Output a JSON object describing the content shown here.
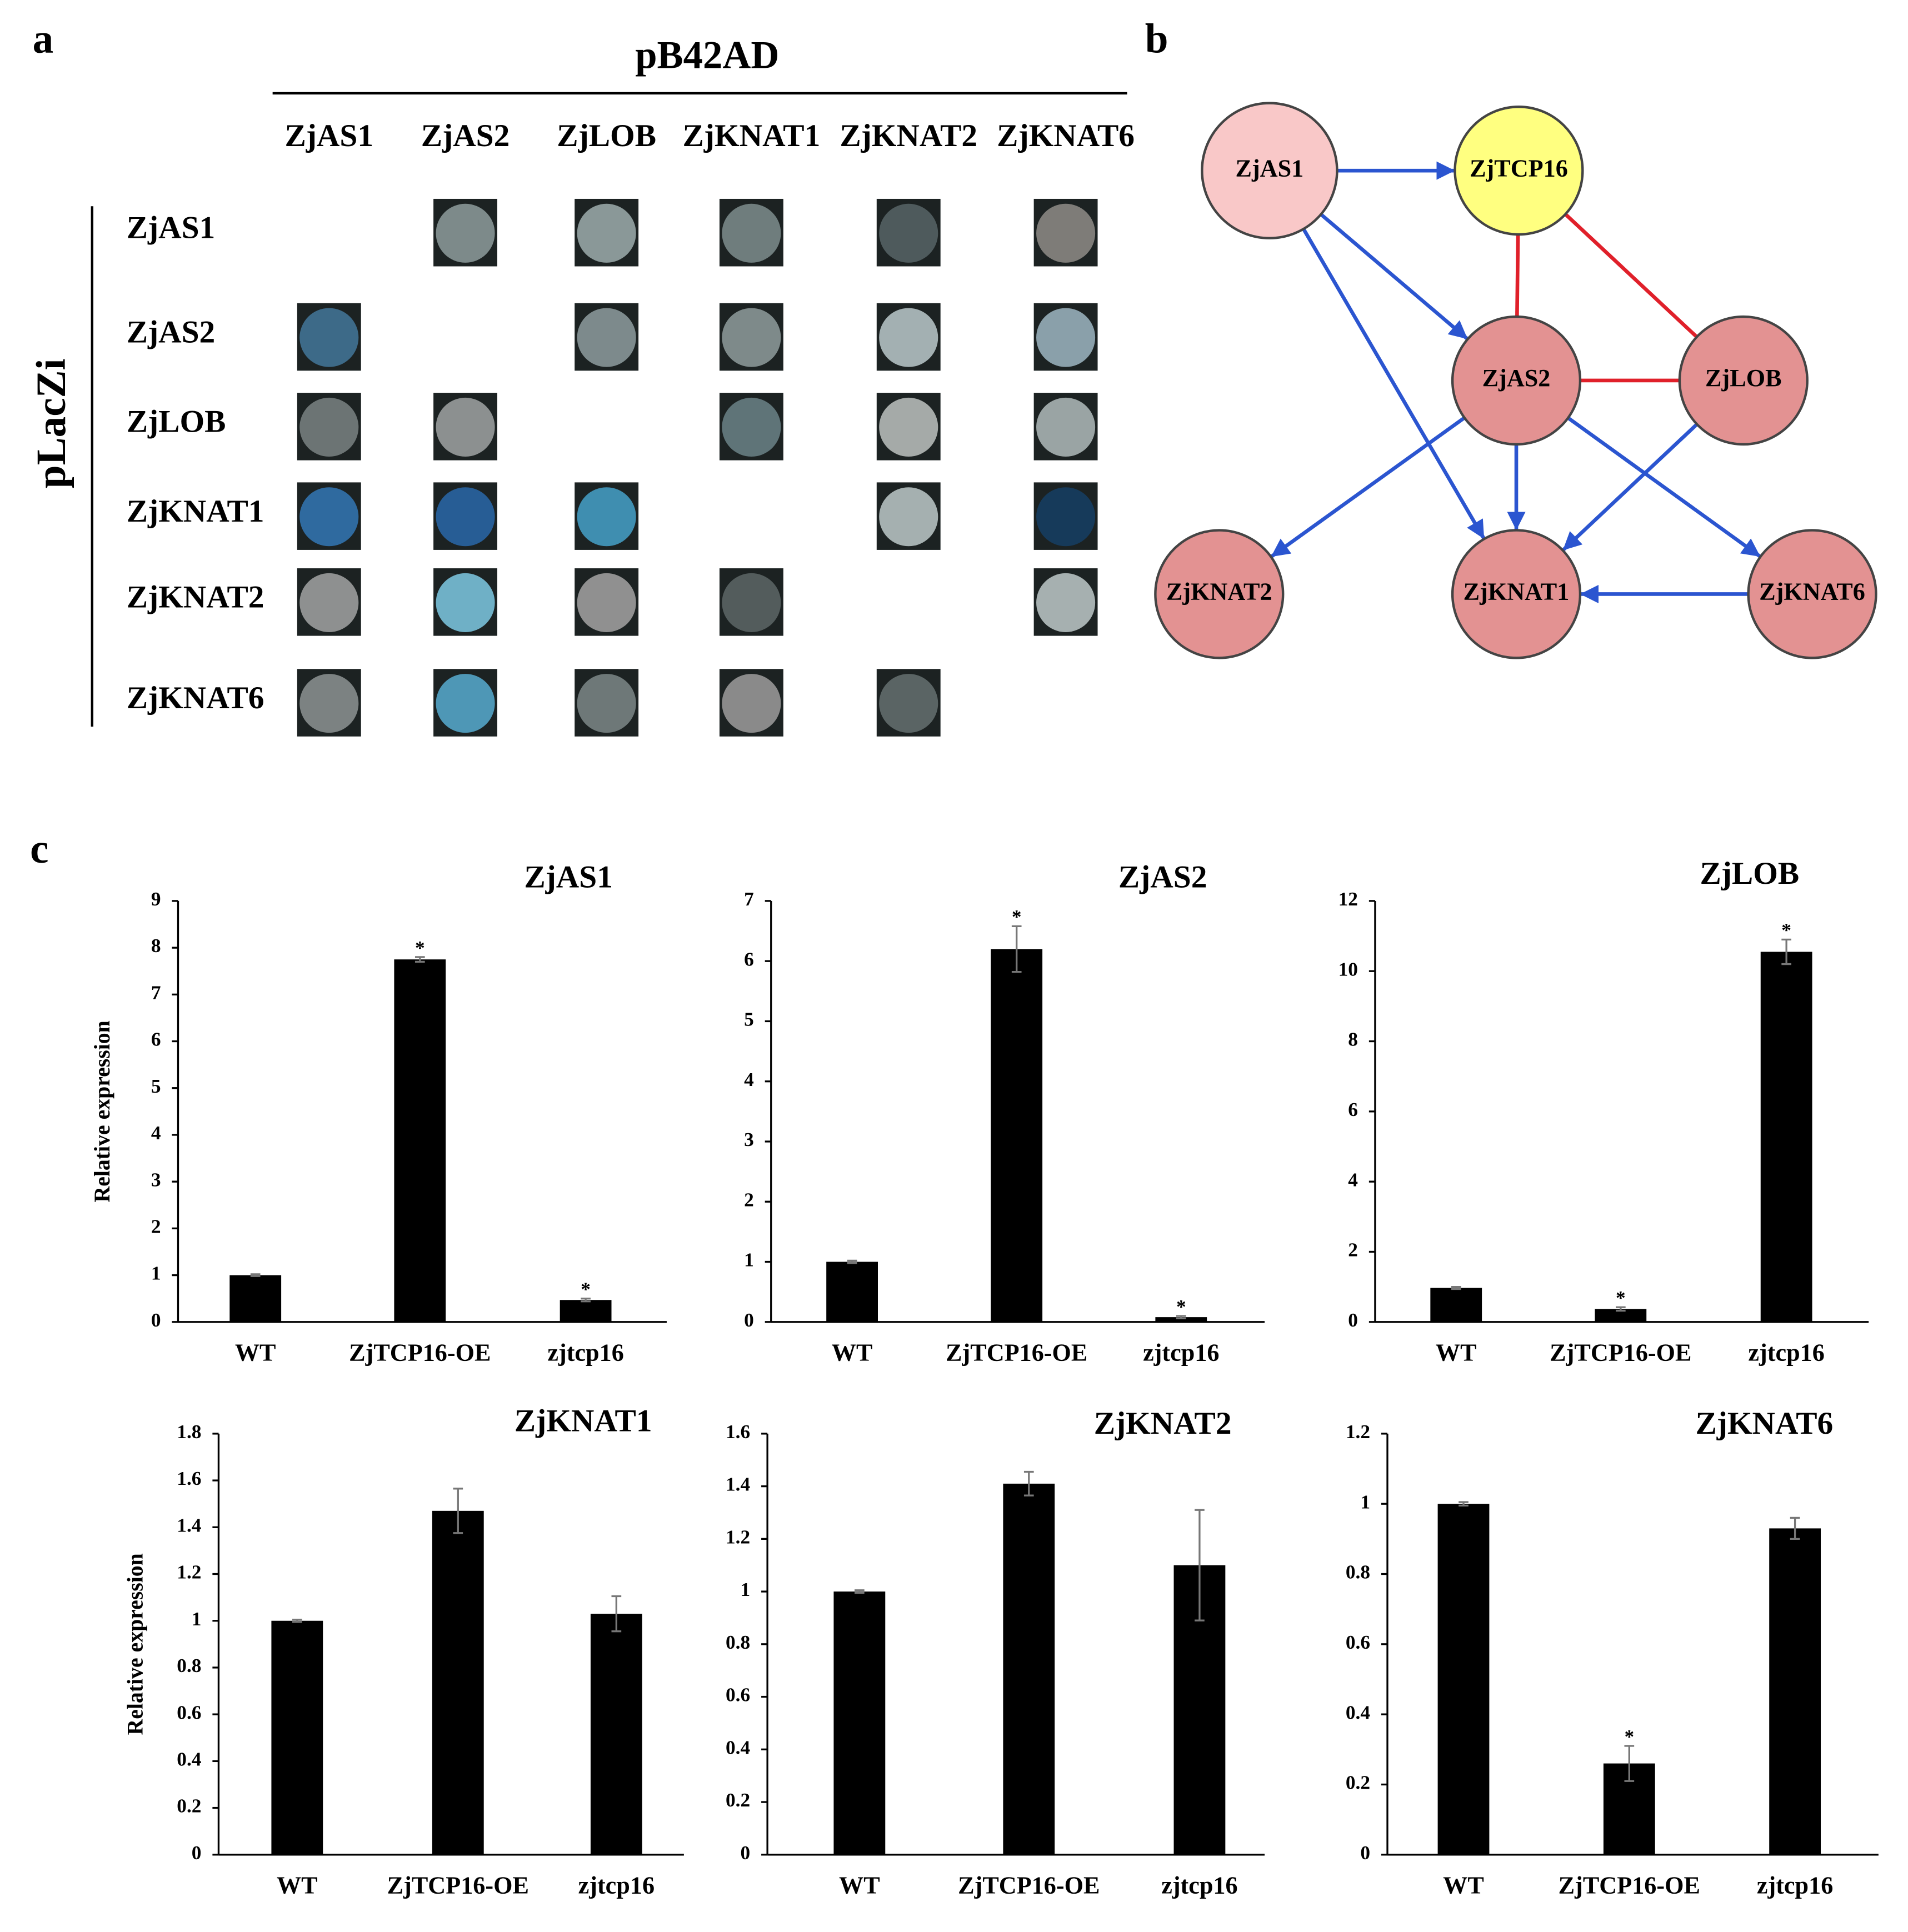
{
  "panel_labels": [
    "a",
    "b",
    "c"
  ],
  "panel_a": {
    "header": "pB42AD",
    "side_label": "pLacZi",
    "columns": [
      "ZjAS1",
      "ZjAS2",
      "ZjLOB",
      "ZjKNAT1",
      "ZjKNAT2",
      "ZjKNAT6"
    ],
    "rows": [
      "ZjAS1",
      "ZjAS2",
      "ZjLOB",
      "ZjKNAT1",
      "ZjKNAT2",
      "ZjKNAT6"
    ],
    "spot_colors": [
      [
        null,
        "#7d8a8a",
        "#8a9898",
        "#6f7d7d",
        "#4e5a5c",
        "#7e7c78"
      ],
      [
        "#3d6a88",
        null,
        "#7d8a8c",
        "#7e8a8a",
        "#a3b0b2",
        "#8aa0aa"
      ],
      [
        "#6c7474",
        "#8c9090",
        null,
        "#5f7478",
        "#a5aaa8",
        "#9aa4a4"
      ],
      [
        "#2f6a9f",
        "#275d95",
        "#3f8eb0",
        null,
        "#a5b0b0",
        "#163a5a"
      ],
      [
        "#8e9090",
        "#6fb0c6",
        "#909090",
        "#535c5c",
        null,
        "#a6b0b0"
      ],
      [
        "#7c8282",
        "#4e97b6",
        "#6e7878",
        "#8a8a8a",
        "#5a6464",
        null
      ]
    ]
  },
  "panel_b": {
    "nodes": [
      {
        "label": "ZjAS1",
        "color": "#f9c8c8"
      },
      {
        "label": "ZjTCP16",
        "color": "#ffff80"
      },
      {
        "label": "ZjAS2",
        "color": "#e39292"
      },
      {
        "label": "ZjLOB",
        "color": "#e39292"
      },
      {
        "label": "ZjKNAT2",
        "color": "#e39292"
      },
      {
        "label": "ZjKNAT1",
        "color": "#e39292"
      },
      {
        "label": "ZjKNAT6",
        "color": "#e39292"
      }
    ],
    "edges": [
      {
        "from": 0,
        "to": 1,
        "color": "#2b55d0",
        "arrow": true
      },
      {
        "from": 0,
        "to": 2,
        "color": "#2b55d0",
        "arrow": true
      },
      {
        "from": 0,
        "to": 5,
        "color": "#2b55d0",
        "arrow": true
      },
      {
        "from": 1,
        "to": 2,
        "color": "#e0202a",
        "arrow": false
      },
      {
        "from": 1,
        "to": 3,
        "color": "#e0202a",
        "arrow": false
      },
      {
        "from": 2,
        "to": 3,
        "color": "#e0202a",
        "arrow": false
      },
      {
        "from": 2,
        "to": 4,
        "color": "#2b55d0",
        "arrow": true
      },
      {
        "from": 2,
        "to": 5,
        "color": "#2b55d0",
        "arrow": true
      },
      {
        "from": 2,
        "to": 6,
        "color": "#2b55d0",
        "arrow": true
      },
      {
        "from": 3,
        "to": 5,
        "color": "#2b55d0",
        "arrow": true
      },
      {
        "from": 6,
        "to": 5,
        "color": "#2b55d0",
        "arrow": true
      }
    ]
  },
  "chart_data": [
    {
      "type": "bar",
      "title": "ZjAS1",
      "y_label": "Relative expression",
      "categories": [
        "WT",
        "ZjTCP16-OE",
        "zjtcp16"
      ],
      "values": [
        1,
        7.75,
        0.47
      ],
      "errors": [
        0.02,
        0.05,
        0.03
      ],
      "significance": [
        null,
        "*",
        "*"
      ],
      "color": "#000000",
      "ylim": [
        0,
        9
      ],
      "yticks": [
        0,
        1,
        2,
        3,
        4,
        5,
        6,
        7,
        8,
        9
      ]
    },
    {
      "type": "bar",
      "title": "ZjAS2",
      "categories": [
        "WT",
        "ZjTCP16-OE",
        "zjtcp16"
      ],
      "values": [
        1,
        6.2,
        0.08
      ],
      "errors": [
        0.02,
        0.38,
        0.02
      ],
      "significance": [
        null,
        "*",
        "*"
      ],
      "color": "#000000",
      "ylim": [
        0,
        7
      ],
      "yticks": [
        0,
        1,
        2,
        3,
        4,
        5,
        6,
        7
      ]
    },
    {
      "type": "bar",
      "title": "ZjLOB",
      "categories": [
        "WT",
        "ZjTCP16-OE",
        "zjtcp16"
      ],
      "values": [
        0.97,
        0.37,
        10.55
      ],
      "errors": [
        0.03,
        0.05,
        0.35
      ],
      "significance": [
        null,
        "*",
        "*"
      ],
      "color": "#000000",
      "ylim": [
        0,
        12
      ],
      "yticks": [
        0,
        2,
        4,
        6,
        8,
        10,
        12
      ]
    },
    {
      "type": "bar",
      "title": "ZjKNAT1",
      "y_label": "Relative expression",
      "categories": [
        "WT",
        "ZjTCP16-OE",
        "zjtcp16"
      ],
      "values": [
        1,
        1.47,
        1.03
      ],
      "errors": [
        0.005,
        0.095,
        0.075
      ],
      "significance": [
        null,
        null,
        null
      ],
      "color": "#000000",
      "ylim": [
        0,
        1.8
      ],
      "yticks": [
        0,
        0.2,
        0.4,
        0.6,
        0.8,
        1,
        1.2,
        1.4,
        1.6,
        1.8
      ]
    },
    {
      "type": "bar",
      "title": "ZjKNAT2",
      "categories": [
        "WT",
        "ZjTCP16-OE",
        "zjtcp16"
      ],
      "values": [
        1,
        1.41,
        1.1
      ],
      "errors": [
        0.005,
        0.045,
        0.21
      ],
      "significance": [
        null,
        null,
        null
      ],
      "color": "#000000",
      "ylim": [
        0,
        1.6
      ],
      "yticks": [
        0,
        0.2,
        0.4,
        0.6,
        0.8,
        1,
        1.2,
        1.4,
        1.6
      ]
    },
    {
      "type": "bar",
      "title": "ZjKNAT6",
      "categories": [
        "WT",
        "ZjTCP16-OE",
        "zjtcp16"
      ],
      "values": [
        1,
        0.26,
        0.93
      ],
      "errors": [
        0.005,
        0.05,
        0.03
      ],
      "significance": [
        null,
        "*",
        null
      ],
      "color": "#000000",
      "ylim": [
        0,
        1.2
      ],
      "yticks": [
        0,
        0.2,
        0.4,
        0.6,
        0.8,
        1,
        1.2
      ]
    }
  ]
}
